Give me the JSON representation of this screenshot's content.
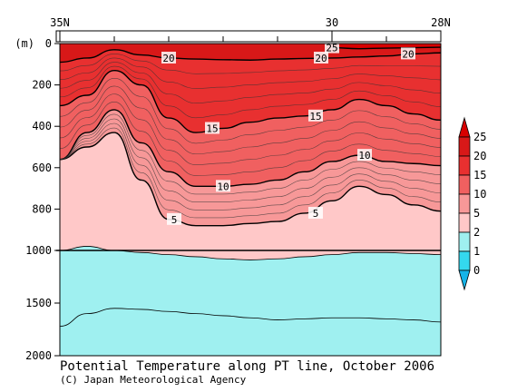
{
  "chart_data": {
    "type": "heatmap",
    "title": "Potential Temperature along PT line, October 2006",
    "credit": "(C) Japan Meteorological Agency",
    "xlabel": "",
    "ylabel": "(m)",
    "x_ticks": [
      "35N",
      "30",
      "28N"
    ],
    "xlim": [
      35,
      28
    ],
    "y_ticks_upper": [
      "0",
      "200",
      "400",
      "600",
      "800",
      "1000"
    ],
    "y_ticks_lower": [
      "1500",
      "2000"
    ],
    "ylim_upper": [
      0,
      1000
    ],
    "ylim_lower": [
      1000,
      2000
    ],
    "colorbar": {
      "levels": [
        0,
        1,
        2,
        5,
        10,
        15,
        20,
        25
      ],
      "labels": [
        "0",
        "1",
        "2",
        "5",
        "10",
        "15",
        "20",
        "25"
      ],
      "colors": [
        "#16b4e8",
        "#34d8ee",
        "#9ff0f0",
        "#ffc8c8",
        "#f79898",
        "#f06060",
        "#e83030",
        "#d81818",
        "#d80000"
      ]
    },
    "x_stations": [
      35,
      34.5,
      34,
      33.5,
      33,
      32.5,
      32,
      31.5,
      31,
      30.5,
      30,
      29.5,
      29,
      28.5,
      28
    ],
    "isotherms": [
      {
        "temp": 25,
        "label": "25",
        "depths": [
          null,
          null,
          null,
          null,
          null,
          null,
          null,
          null,
          null,
          null,
          20,
          25,
          22,
          20,
          18
        ]
      },
      {
        "temp": 20,
        "label": "20",
        "depths": [
          90,
          70,
          30,
          55,
          70,
          75,
          78,
          80,
          75,
          72,
          70,
          65,
          60,
          50,
          45
        ]
      },
      {
        "temp": 15,
        "label": "15",
        "depths": [
          300,
          250,
          130,
          200,
          360,
          430,
          410,
          380,
          360,
          350,
          320,
          270,
          300,
          340,
          370
        ]
      },
      {
        "temp": 10,
        "label": "10",
        "depths": [
          560,
          430,
          320,
          480,
          620,
          690,
          690,
          680,
          660,
          620,
          570,
          540,
          570,
          580,
          590
        ]
      },
      {
        "temp": 5,
        "label": "5",
        "depths": [
          560,
          500,
          430,
          660,
          850,
          880,
          880,
          870,
          860,
          820,
          760,
          690,
          730,
          780,
          810
        ]
      },
      {
        "temp": 2,
        "label": "",
        "depths": [
          1000,
          980,
          1000,
          1020,
          1040,
          1060,
          1080,
          1090,
          1080,
          1060,
          1040,
          1020,
          1020,
          1030,
          1040
        ]
      },
      {
        "temp": 1,
        "label": "",
        "depths": [
          1720,
          1600,
          1550,
          1560,
          1580,
          1600,
          1620,
          1640,
          1660,
          1650,
          1640,
          1640,
          1650,
          1660,
          1680
        ]
      }
    ]
  }
}
